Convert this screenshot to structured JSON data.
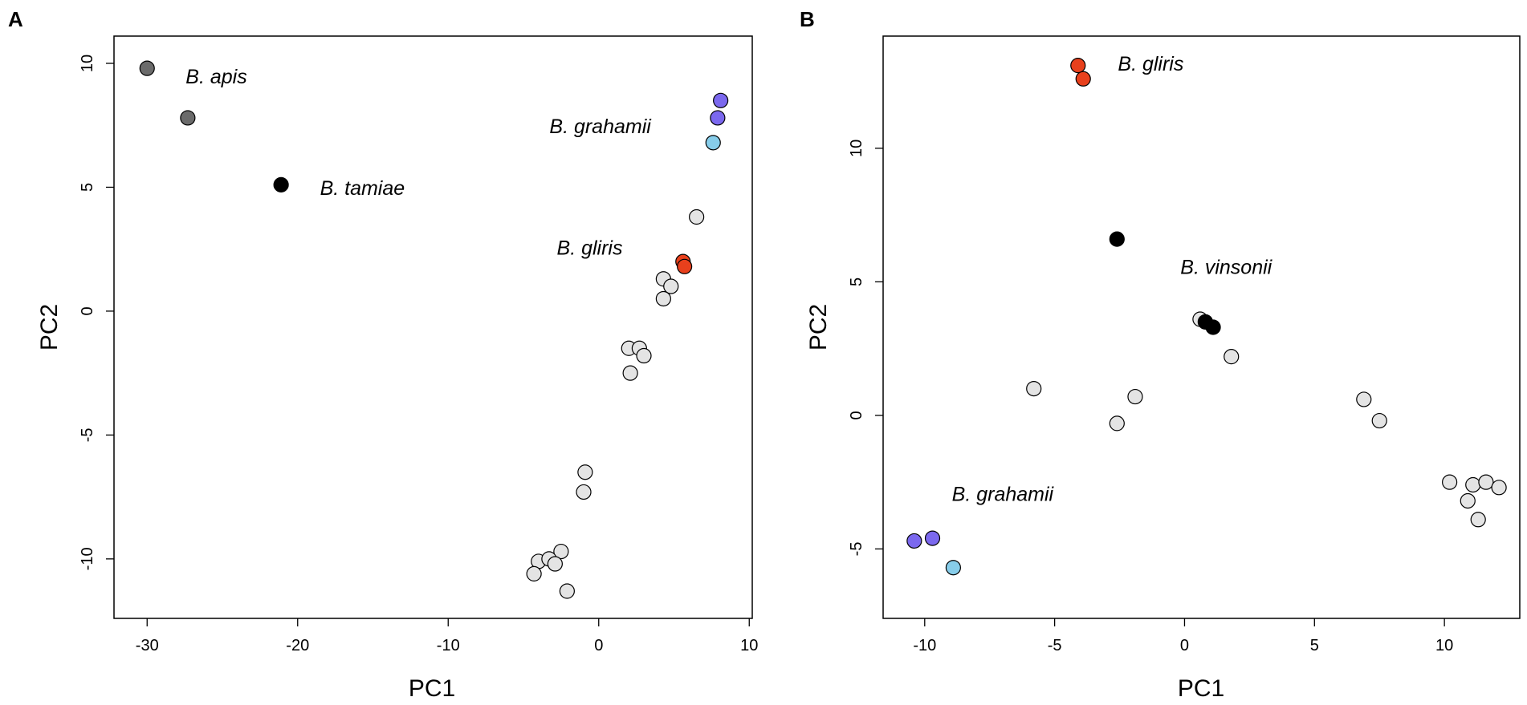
{
  "colors": {
    "light_gray": "#e4e4e4",
    "dark_gray": "#6b6b6b",
    "black": "#000000",
    "orange_red": "#e8401c",
    "purple": "#7b68ee",
    "light_blue": "#87cdea",
    "frame": "#000000"
  },
  "chart_data": [
    {
      "panel": "A",
      "type": "scatter",
      "xlabel": "PC1",
      "ylabel": "PC2",
      "xlim": [
        -32.2,
        10.2
      ],
      "ylim": [
        -12.4,
        11.1
      ],
      "xticks": [
        -30,
        -20,
        -10,
        0,
        10
      ],
      "yticks": [
        -10,
        -5,
        0,
        5,
        10
      ],
      "annotations": [
        {
          "text": "B. apis",
          "x": -25.4,
          "y": 9.4
        },
        {
          "text": "B. tamiae",
          "x": -15.7,
          "y": 4.9
        },
        {
          "text": "B. grahamii",
          "x": 0.1,
          "y": 7.4
        },
        {
          "text": "B. gliris",
          "x": -0.6,
          "y": 2.5
        }
      ],
      "points": [
        {
          "x": -30.0,
          "y": 9.8,
          "color": "dark_gray"
        },
        {
          "x": -27.3,
          "y": 7.8,
          "color": "dark_gray"
        },
        {
          "x": -21.1,
          "y": 5.1,
          "color": "black"
        },
        {
          "x": 8.1,
          "y": 8.5,
          "color": "purple"
        },
        {
          "x": 7.9,
          "y": 7.8,
          "color": "purple"
        },
        {
          "x": 7.6,
          "y": 6.8,
          "color": "light_blue"
        },
        {
          "x": 6.5,
          "y": 3.8,
          "color": "light_gray"
        },
        {
          "x": 5.6,
          "y": 2.0,
          "color": "orange_red"
        },
        {
          "x": 5.7,
          "y": 1.8,
          "color": "orange_red"
        },
        {
          "x": 4.3,
          "y": 1.3,
          "color": "light_gray"
        },
        {
          "x": 4.8,
          "y": 1.0,
          "color": "light_gray"
        },
        {
          "x": 4.3,
          "y": 0.5,
          "color": "light_gray"
        },
        {
          "x": 2.0,
          "y": -1.5,
          "color": "light_gray"
        },
        {
          "x": 2.7,
          "y": -1.5,
          "color": "light_gray"
        },
        {
          "x": 3.0,
          "y": -1.8,
          "color": "light_gray"
        },
        {
          "x": 2.1,
          "y": -2.5,
          "color": "light_gray"
        },
        {
          "x": -0.9,
          "y": -6.5,
          "color": "light_gray"
        },
        {
          "x": -1.0,
          "y": -7.3,
          "color": "light_gray"
        },
        {
          "x": -2.5,
          "y": -9.7,
          "color": "light_gray"
        },
        {
          "x": -4.0,
          "y": -10.1,
          "color": "light_gray"
        },
        {
          "x": -3.3,
          "y": -10.0,
          "color": "light_gray"
        },
        {
          "x": -2.9,
          "y": -10.2,
          "color": "light_gray"
        },
        {
          "x": -4.3,
          "y": -10.6,
          "color": "light_gray"
        },
        {
          "x": -2.1,
          "y": -11.3,
          "color": "light_gray"
        }
      ]
    },
    {
      "panel": "B",
      "type": "scatter",
      "xlabel": "PC1",
      "ylabel": "PC2",
      "xlim": [
        -11.6,
        12.9
      ],
      "ylim": [
        -7.6,
        14.2
      ],
      "xticks": [
        -10,
        -5,
        0,
        5,
        10
      ],
      "yticks": [
        -5,
        0,
        5,
        10
      ],
      "annotations": [
        {
          "text": "B. gliris",
          "x": -1.3,
          "y": 13.1
        },
        {
          "text": "B. vinsonii",
          "x": 1.6,
          "y": 5.5
        },
        {
          "text": "B. grahamii",
          "x": -7.0,
          "y": -3.0
        }
      ],
      "points": [
        {
          "x": -4.1,
          "y": 13.1,
          "color": "orange_red"
        },
        {
          "x": -3.9,
          "y": 12.6,
          "color": "orange_red"
        },
        {
          "x": -2.6,
          "y": 6.6,
          "color": "black"
        },
        {
          "x": 0.6,
          "y": 3.6,
          "color": "light_gray"
        },
        {
          "x": 0.8,
          "y": 3.5,
          "color": "black"
        },
        {
          "x": 1.1,
          "y": 3.3,
          "color": "black"
        },
        {
          "x": 1.8,
          "y": 2.2,
          "color": "light_gray"
        },
        {
          "x": -5.8,
          "y": 1.0,
          "color": "light_gray"
        },
        {
          "x": -1.9,
          "y": 0.7,
          "color": "light_gray"
        },
        {
          "x": -2.6,
          "y": -0.3,
          "color": "light_gray"
        },
        {
          "x": 6.9,
          "y": 0.6,
          "color": "light_gray"
        },
        {
          "x": 7.5,
          "y": -0.2,
          "color": "light_gray"
        },
        {
          "x": 10.2,
          "y": -2.5,
          "color": "light_gray"
        },
        {
          "x": 11.1,
          "y": -2.6,
          "color": "light_gray"
        },
        {
          "x": 11.6,
          "y": -2.5,
          "color": "light_gray"
        },
        {
          "x": 12.1,
          "y": -2.7,
          "color": "light_gray"
        },
        {
          "x": 10.9,
          "y": -3.2,
          "color": "light_gray"
        },
        {
          "x": 11.3,
          "y": -3.9,
          "color": "light_gray"
        },
        {
          "x": -10.4,
          "y": -4.7,
          "color": "purple"
        },
        {
          "x": -9.7,
          "y": -4.6,
          "color": "purple"
        },
        {
          "x": -8.9,
          "y": -5.7,
          "color": "light_blue"
        }
      ]
    }
  ]
}
